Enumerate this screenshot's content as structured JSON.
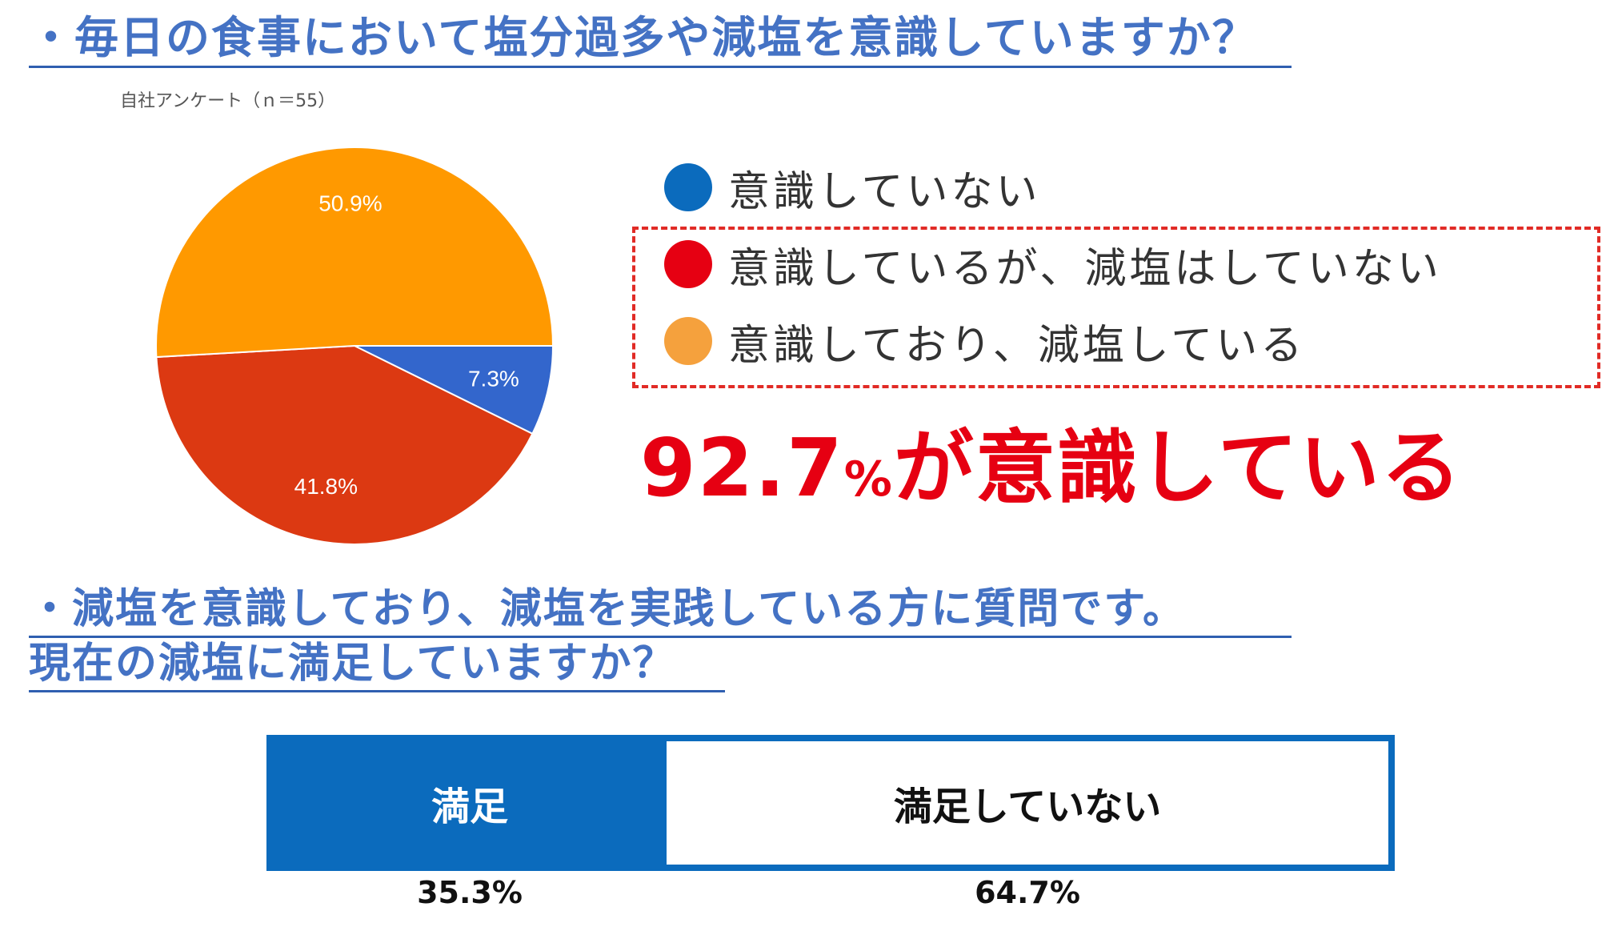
{
  "question1": "・毎日の食事において塩分過多や減塩を意識していますか？",
  "source": "自社アンケート（ｎ＝55）",
  "pie": {
    "type": "pie",
    "slices": [
      {
        "label": "意識していない",
        "value": 7.3,
        "display": "7.3%",
        "color": "#3366cc"
      },
      {
        "label": "意識しているが、減塩はしていない",
        "value": 41.8,
        "display": "41.8%",
        "color": "#dc3912"
      },
      {
        "label": "意識しており、減塩している",
        "value": 50.9,
        "display": "50.9%",
        "color": "#ff9900"
      }
    ]
  },
  "legend": [
    {
      "label": "意識していない",
      "color": "#0b6bbd"
    },
    {
      "label": "意識しているが、減塩はしていない",
      "color": "#e60012"
    },
    {
      "label": "意識しており、減塩している",
      "color": "#f5a13d"
    }
  ],
  "headline": {
    "number": "92.7",
    "unit": "%",
    "rest": "が意識している"
  },
  "question2": {
    "line1": "・減塩を意識しており、減塩を実践している方に質問です。",
    "line2": "現在の減塩に満足していますか？"
  },
  "chart_data": [
    {
      "type": "pie",
      "categories": [
        "意識していない",
        "意識しているが、減塩はしていない",
        "意識しており、減塩している"
      ],
      "values": [
        7.3,
        41.8,
        50.9
      ]
    },
    {
      "type": "bar",
      "categories": [
        "満足",
        "満足していない"
      ],
      "values": [
        35.3,
        64.7
      ],
      "value_labels": [
        "35.3%",
        "64.7%"
      ]
    }
  ],
  "bar": {
    "segments": [
      {
        "label": "満足",
        "value": 35.3,
        "display": "35.3%"
      },
      {
        "label": "満足していない",
        "value": 64.7,
        "display": "64.7%"
      }
    ]
  }
}
